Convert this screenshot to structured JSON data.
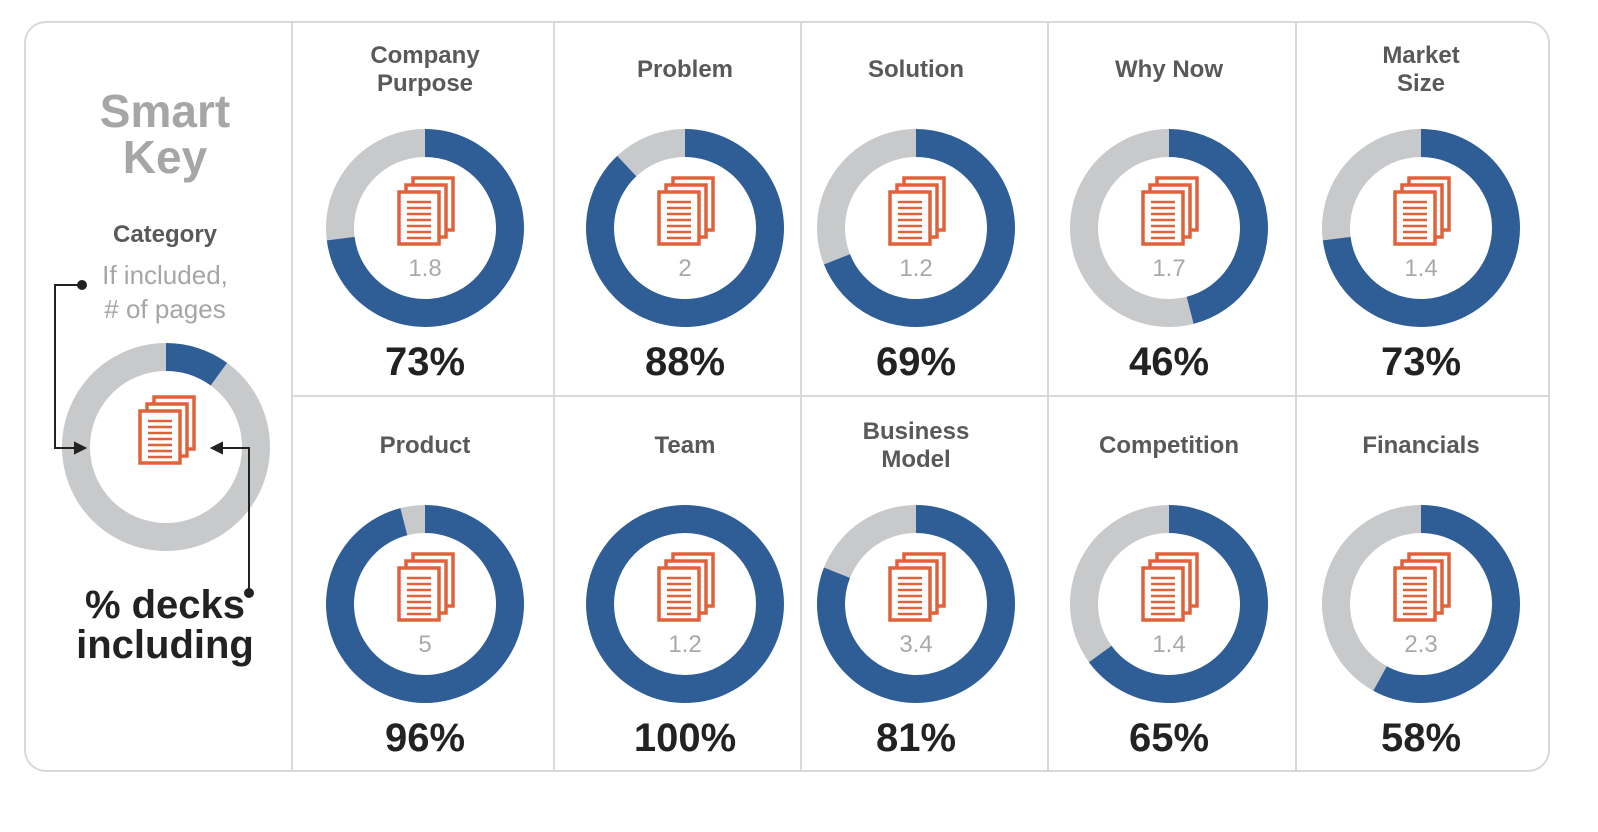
{
  "key": {
    "title": "Smart\nKey",
    "category_label": "Category",
    "pages_label": "If included,\n# of pages",
    "percent_label": "% decks\nincluding"
  },
  "colors": {
    "blue": "#2f5d96",
    "gray": "#c8c9cb",
    "icon": "#e0623b",
    "pages_text": "#a9a9a9"
  },
  "icons": {
    "document": "document-stack-icon"
  },
  "chart_data": {
    "type": "donut",
    "categories": [
      "Company Purpose",
      "Problem",
      "Solution",
      "Why Now",
      "Market Size",
      "Product",
      "Team",
      "Business Model",
      "Competition",
      "Financials"
    ],
    "items": [
      {
        "category": "Company\nPurpose",
        "pages": "1.8",
        "percent": 73,
        "percent_label": "73%"
      },
      {
        "category": "Problem",
        "pages": "2",
        "percent": 88,
        "percent_label": "88%"
      },
      {
        "category": "Solution",
        "pages": "1.2",
        "percent": 69,
        "percent_label": "69%"
      },
      {
        "category": "Why Now",
        "pages": "1.7",
        "percent": 46,
        "percent_label": "46%"
      },
      {
        "category": "Market\nSize",
        "pages": "1.4",
        "percent": 73,
        "percent_label": "73%"
      },
      {
        "category": "Product",
        "pages": "5",
        "percent": 96,
        "percent_label": "96%"
      },
      {
        "category": "Team",
        "pages": "1.2",
        "percent": 100,
        "percent_label": "100%"
      },
      {
        "category": "Business\nModel",
        "pages": "3.4",
        "percent": 81,
        "percent_label": "81%"
      },
      {
        "category": "Competition",
        "pages": "1.4",
        "percent": 65,
        "percent_label": "65%"
      },
      {
        "category": "Financials",
        "pages": "2.3",
        "percent": 58,
        "percent_label": "58%"
      }
    ],
    "key_example_percent": 10
  }
}
